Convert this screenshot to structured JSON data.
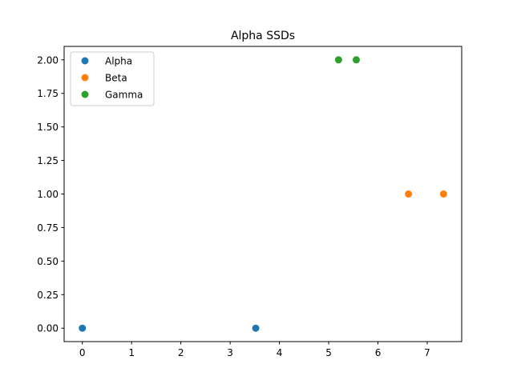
{
  "chart_data": {
    "type": "scatter",
    "title": "Alpha SSDs",
    "xlabel": "",
    "ylabel": "",
    "xlim": [
      -0.37,
      7.7
    ],
    "ylim": [
      -0.1,
      2.1
    ],
    "xticks": [
      0,
      1,
      2,
      3,
      4,
      5,
      6,
      7
    ],
    "xtick_labels": [
      "0",
      "1",
      "2",
      "3",
      "4",
      "5",
      "6",
      "7"
    ],
    "yticks": [
      0,
      0.25,
      0.5,
      0.75,
      1,
      1.25,
      1.5,
      1.75,
      2
    ],
    "ytick_labels": [
      "0.00",
      "0.25",
      "0.50",
      "0.75",
      "1.00",
      "1.25",
      "1.50",
      "1.75",
      "2.00"
    ],
    "grid": false,
    "legend_position": "upper-left",
    "series": [
      {
        "name": "Alpha",
        "color": "#1f77b4",
        "points": [
          [
            0.0,
            0
          ],
          [
            3.52,
            0
          ]
        ]
      },
      {
        "name": "Beta",
        "color": "#ff7f0e",
        "points": [
          [
            6.62,
            1
          ],
          [
            7.33,
            1
          ]
        ]
      },
      {
        "name": "Gamma",
        "color": "#2ca02c",
        "points": [
          [
            5.2,
            2
          ],
          [
            5.56,
            2
          ]
        ]
      }
    ]
  }
}
